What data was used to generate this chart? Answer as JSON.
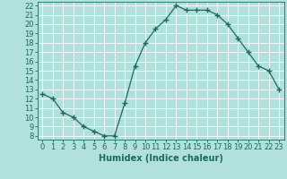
{
  "x": [
    0,
    1,
    2,
    3,
    4,
    5,
    6,
    7,
    8,
    9,
    10,
    11,
    12,
    13,
    14,
    15,
    16,
    17,
    18,
    19,
    20,
    21,
    22,
    23
  ],
  "y": [
    12.5,
    12.0,
    10.5,
    10.0,
    9.0,
    8.5,
    8.0,
    8.0,
    11.5,
    15.5,
    18.0,
    19.5,
    20.5,
    22.0,
    21.5,
    21.5,
    21.5,
    21.0,
    20.0,
    18.5,
    17.0,
    15.5,
    15.0,
    13.0
  ],
  "line_color": "#1a6b5e",
  "marker": "+",
  "markersize": 4,
  "linewidth": 0.9,
  "markeredgewidth": 1.0,
  "xlabel": "Humidex (Indice chaleur)",
  "bg_color": "#b2e0dc",
  "grid_color": "#ffffff",
  "ylim_min": 8,
  "ylim_max": 22,
  "xlim_min": -0.5,
  "xlim_max": 23.5,
  "yticks": [
    8,
    9,
    10,
    11,
    12,
    13,
    14,
    15,
    16,
    17,
    18,
    19,
    20,
    21,
    22
  ],
  "xtick_labels": [
    "0",
    "1",
    "2",
    "3",
    "4",
    "5",
    "6",
    "7",
    "8",
    "9",
    "10",
    "11",
    "12",
    "13",
    "14",
    "15",
    "16",
    "17",
    "18",
    "19",
    "20",
    "21",
    "22",
    "23"
  ],
  "xlabel_fontsize": 7,
  "tick_fontsize": 6
}
